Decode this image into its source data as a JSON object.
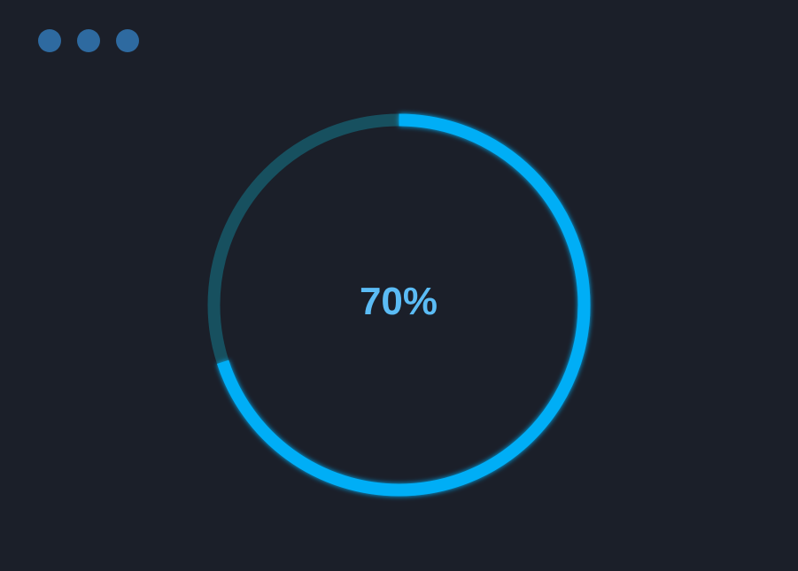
{
  "window_controls": [
    {
      "name": "dot-1",
      "color": "#2e6aa0"
    },
    {
      "name": "dot-2",
      "color": "#2e6aa0"
    },
    {
      "name": "dot-3",
      "color": "#2e6aa0"
    }
  ],
  "progress": {
    "value": 70,
    "label": "70%",
    "track_color": "#17505f",
    "fill_color": "#00aef6",
    "text_color": "#5bbcf5"
  }
}
